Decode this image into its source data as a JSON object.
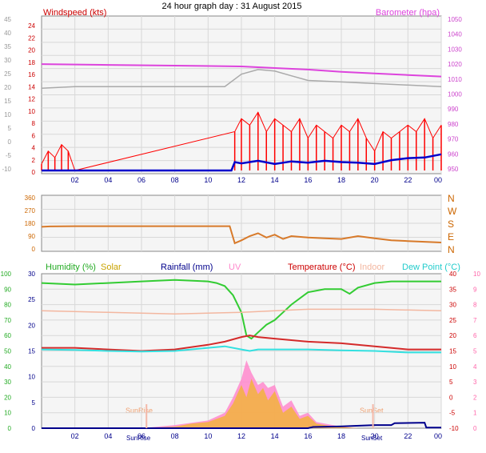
{
  "title": "24 hour graph day : 31 August 2015",
  "colors": {
    "background": "#f5f5f5",
    "grid": "#d8d8d8",
    "wind_avg": "#0000cc",
    "wind_gust": "#ff0000",
    "barometer": "#dd44dd",
    "grey_line": "#aaaaaa",
    "direction": "#d87a2a",
    "humidity": "#33cc33",
    "solar": "#f2b33d",
    "rainfall": "#00008b",
    "uv": "#ff88cc",
    "temperature": "#d42a2a",
    "indoor": "#f3b7a0",
    "dew_point": "#33e0e0"
  },
  "chart_data": [
    {
      "type": "line",
      "title": "24 hour graph day : 31 August 2015",
      "ylabel_left": "Windspeed (kts)",
      "ylabel_right": "Barometer (hpa)",
      "x_ticks": [
        "02",
        "04",
        "06",
        "08",
        "10",
        "12",
        "14",
        "16",
        "18",
        "20",
        "22",
        "00"
      ],
      "xlim": [
        0,
        24
      ],
      "y_left_ticks_grey": [
        "45",
        "40",
        "35",
        "30",
        "25",
        "20",
        "15",
        "10",
        "5",
        "0",
        "-5",
        "-10"
      ],
      "y_left_ticks_red": [
        "24",
        "22",
        "20",
        "18",
        "16",
        "14",
        "12",
        "10",
        "8",
        "6",
        "4",
        "2",
        "0"
      ],
      "y_right_ticks": [
        "1050",
        "1040",
        "1030",
        "1020",
        "1010",
        "1000",
        "990",
        "980",
        "970",
        "960",
        "950"
      ],
      "ylim_left": [
        0,
        24
      ],
      "ylim_right": [
        950,
        1050
      ],
      "grid": true,
      "series": [
        {
          "role": "barometer",
          "axis": "right",
          "x": [
            0,
            4,
            8,
            12,
            14,
            16,
            18,
            20,
            22,
            24
          ],
          "y": [
            1018.5,
            1018,
            1017.5,
            1017,
            1016,
            1015,
            1013.5,
            1012.5,
            1011.5,
            1010.5
          ]
        },
        {
          "role": "grey",
          "axis": "right",
          "x": [
            0,
            2,
            4,
            8,
            11,
            12,
            13,
            14,
            15,
            16,
            18,
            20,
            22,
            24
          ],
          "y": [
            1003,
            1004,
            1004,
            1004,
            1004,
            1012,
            1015,
            1014,
            1011,
            1008,
            1007,
            1006,
            1005,
            1004
          ]
        },
        {
          "role": "wind_avg",
          "axis": "left",
          "x": [
            0,
            1.6,
            3,
            6,
            9,
            11.4,
            11.6,
            12,
            13,
            14,
            15,
            16,
            17,
            18,
            19,
            20,
            21,
            22,
            23,
            24
          ],
          "y": [
            0,
            0,
            0,
            0,
            0,
            0,
            1.3,
            1.1,
            1.5,
            1.0,
            1.4,
            1.2,
            1.5,
            1.3,
            1.2,
            1.0,
            1.6,
            1.9,
            2.0,
            2.5
          ]
        },
        {
          "role": "wind_gust",
          "axis": "left",
          "x": [
            0,
            0.4,
            0.8,
            1.2,
            1.6,
            2.0,
            11.6,
            12,
            12.5,
            13,
            13.5,
            14,
            14.5,
            15,
            15.5,
            16,
            16.5,
            17,
            17.5,
            18,
            18.5,
            19,
            19.5,
            20,
            20.5,
            21,
            21.5,
            22,
            22.5,
            23,
            23.5,
            24
          ],
          "y": [
            1,
            3,
            2,
            4,
            3,
            0,
            6,
            8,
            7,
            9,
            6,
            8,
            7,
            6,
            8,
            5,
            7,
            6,
            5,
            7,
            6,
            8,
            5,
            3,
            6,
            5,
            6,
            7,
            6,
            8,
            5,
            7
          ]
        }
      ]
    },
    {
      "type": "line",
      "ylabel_left_ticks": [
        "360",
        "270",
        "180",
        "90",
        "0"
      ],
      "y_right_labels": [
        "N",
        "W",
        "S",
        "E",
        "N"
      ],
      "ylim": [
        0,
        360
      ],
      "xlim": [
        0,
        24
      ],
      "grid": true,
      "series": [
        {
          "role": "direction",
          "x": [
            0,
            0.5,
            2,
            6,
            10,
            11.3,
            11.6,
            12,
            12.5,
            13,
            13.5,
            14,
            14.5,
            15,
            16,
            17,
            18,
            19,
            20,
            21,
            22,
            23,
            24
          ],
          "y": [
            155,
            158,
            160,
            160,
            160,
            160,
            40,
            60,
            90,
            110,
            80,
            100,
            70,
            90,
            80,
            75,
            70,
            90,
            75,
            60,
            55,
            50,
            45
          ]
        }
      ]
    },
    {
      "type": "area",
      "legend": [
        "Humidity (%)",
        "Solar",
        "Rainfall (mm)",
        "UV",
        "Temperature (°C)",
        "Indoor",
        "Dew Point (°C)"
      ],
      "x_ticks": [
        "02",
        "04",
        "06",
        "08",
        "10",
        "12",
        "14",
        "16",
        "18",
        "20",
        "22",
        "00"
      ],
      "xlim": [
        0,
        24
      ],
      "y_left_outer_ticks": [
        "100",
        "90",
        "80",
        "70",
        "60",
        "50",
        "40",
        "30",
        "20",
        "10",
        "0"
      ],
      "y_left_inner_ticks": [
        "30",
        "25",
        "20",
        "15",
        "10",
        "5",
        "0"
      ],
      "y_right_inner_ticks": [
        "40",
        "35",
        "30",
        "25",
        "20",
        "15",
        "10",
        "5",
        "0",
        "-5",
        "-10"
      ],
      "y_right_outer_ticks": [
        "10",
        "9",
        "8",
        "7",
        "6",
        "5",
        "4",
        "3",
        "2",
        "1",
        "0"
      ],
      "ylim_temperature": [
        -10,
        40
      ],
      "ylim_humidity": [
        0,
        100
      ],
      "annotations": [
        "SunRise",
        "SunSet",
        "SunRise",
        "SunSet"
      ],
      "grid": true,
      "series": [
        {
          "role": "humidity",
          "axis": "humidity",
          "x": [
            0,
            2,
            4,
            6,
            8,
            10,
            10.5,
            11,
            11.5,
            12,
            12.3,
            12.6,
            13,
            13.5,
            14,
            14.5,
            15,
            16,
            17,
            18,
            18.5,
            19,
            20,
            21,
            22,
            24
          ],
          "y": [
            94,
            93,
            94,
            95,
            96,
            95,
            94,
            92,
            86,
            75,
            60,
            58,
            62,
            67,
            70,
            75,
            80,
            88,
            90,
            90,
            87,
            91,
            94,
            95,
            95,
            95
          ]
        },
        {
          "role": "indoor",
          "axis": "temperature",
          "x": [
            0,
            4,
            8,
            12,
            16,
            20,
            24
          ],
          "y": [
            28,
            27.5,
            27,
            27.5,
            28.5,
            28.5,
            28
          ]
        },
        {
          "role": "temperature",
          "axis": "temperature",
          "x": [
            0,
            2,
            4,
            6,
            8,
            10,
            11,
            12,
            12.5,
            13,
            14,
            15,
            16,
            18,
            20,
            22,
            24
          ],
          "y": [
            16,
            16,
            15.5,
            15,
            15.5,
            17,
            18,
            19.5,
            20,
            19.5,
            19,
            18.5,
            18,
            17.5,
            16.5,
            15.5,
            15.5
          ]
        },
        {
          "role": "dew_point",
          "axis": "temperature",
          "x": [
            0,
            2,
            4,
            6,
            8,
            10,
            11,
            12,
            12.5,
            13,
            14,
            15,
            16,
            18,
            20,
            22,
            24
          ],
          "y": [
            15.5,
            15.3,
            15,
            14.8,
            15,
            16,
            16.5,
            15.5,
            15,
            15.5,
            15.5,
            15.5,
            15.5,
            15.2,
            15,
            14.5,
            14.5
          ]
        },
        {
          "role": "solar",
          "axis": "temperature",
          "x": [
            6,
            8,
            9,
            10,
            11,
            11.5,
            12,
            12.3,
            12.6,
            13,
            13.3,
            13.6,
            14,
            14.5,
            15,
            15.5,
            16,
            16.5,
            17,
            17.5,
            18,
            18.5,
            19
          ],
          "y": [
            -10,
            -9.5,
            -8.5,
            -8,
            -6,
            -2,
            4,
            0,
            6,
            1,
            3,
            -1,
            2,
            -5,
            -3,
            -7,
            -6,
            -8.5,
            -9,
            -9.5,
            -9.6,
            -9.8,
            -10
          ]
        },
        {
          "role": "uv",
          "axis": "temperature",
          "x": [
            6,
            8,
            10,
            11,
            11.5,
            12,
            12.3,
            12.6,
            13,
            13.3,
            13.6,
            14,
            14.5,
            15,
            15.5,
            16,
            16.5,
            17,
            17.5,
            18,
            19
          ],
          "y": [
            -10,
            -9,
            -7.5,
            -5,
            0,
            6,
            12,
            8,
            4,
            5,
            3,
            4,
            -3,
            -1,
            -6,
            -5,
            -8,
            -8.5,
            -9,
            -9.5,
            -10
          ]
        },
        {
          "role": "rainfall",
          "axis": "temperature",
          "x": [
            0,
            16,
            16.3,
            18,
            20,
            21,
            21.2,
            23,
            23.1,
            24
          ],
          "y": [
            -10,
            -10,
            -9.6,
            -9.4,
            -9,
            -9,
            -8.4,
            -8.2,
            -9.8,
            -9.8
          ]
        }
      ]
    }
  ]
}
